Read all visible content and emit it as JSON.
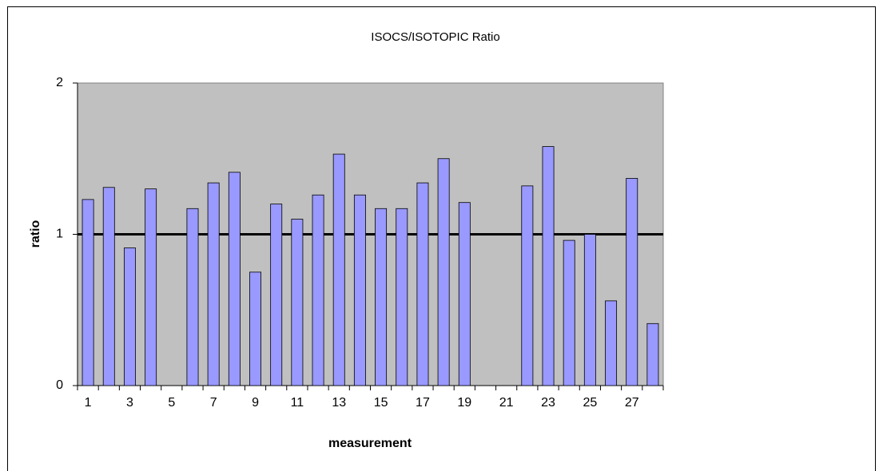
{
  "chart_data": {
    "type": "bar",
    "title": "ISOCS/ISOTOPIC Ratio",
    "x_label": "measurement",
    "y_label": "ratio",
    "categories": [
      "1",
      null,
      "3",
      null,
      "5",
      null,
      "7",
      null,
      "9",
      null,
      "11",
      null,
      "13",
      null,
      "15",
      null,
      "17",
      null,
      "19",
      null,
      "21",
      null,
      "23",
      null,
      "25",
      null,
      "27",
      null
    ],
    "values": [
      1.23,
      1.31,
      0.91,
      1.3,
      null,
      1.17,
      1.34,
      1.41,
      0.75,
      1.2,
      1.1,
      1.26,
      1.53,
      1.26,
      1.17,
      1.17,
      1.34,
      1.5,
      1.21,
      null,
      null,
      1.32,
      1.58,
      0.96,
      1.0,
      0.56,
      1.37,
      0.41
    ],
    "color": "#9999ff",
    "ylim": [
      0,
      2
    ],
    "yticks": [
      0,
      1,
      2
    ],
    "reference_line": 1,
    "plot_background": "#c0c0c0"
  }
}
